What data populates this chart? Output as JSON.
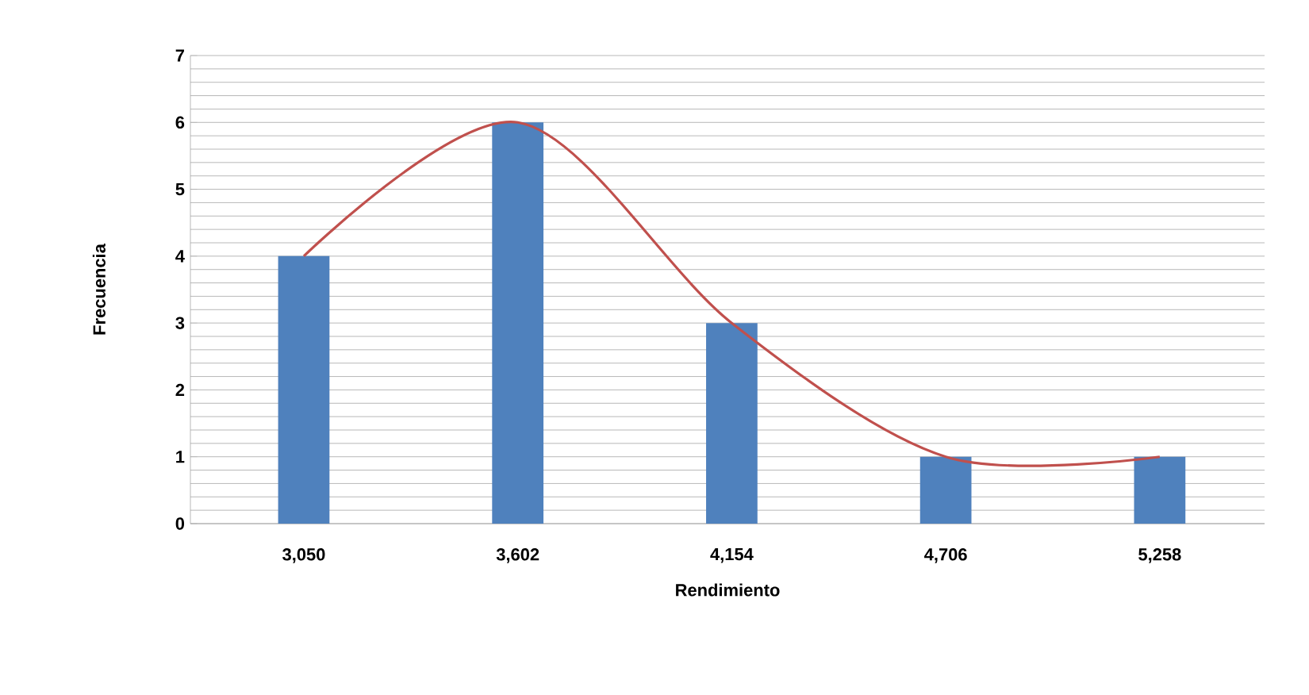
{
  "chart_data": {
    "type": "bar",
    "xlabel": "Rendimiento",
    "ylabel": "Frecuencia",
    "categories": [
      "3,050",
      "3,602",
      "4,154",
      "4,706",
      "5,258"
    ],
    "series": [
      {
        "color": "#4f81bd",
        "values": [
          4,
          6,
          3,
          1,
          1
        ]
      },
      {
        "type": "line",
        "color": "#c0504d",
        "values": [
          4,
          6,
          3,
          1,
          1
        ]
      }
    ],
    "ylim": [
      0,
      7
    ],
    "yticks": [
      0,
      1,
      2,
      3,
      4,
      5,
      6,
      7
    ],
    "grid": "y"
  }
}
